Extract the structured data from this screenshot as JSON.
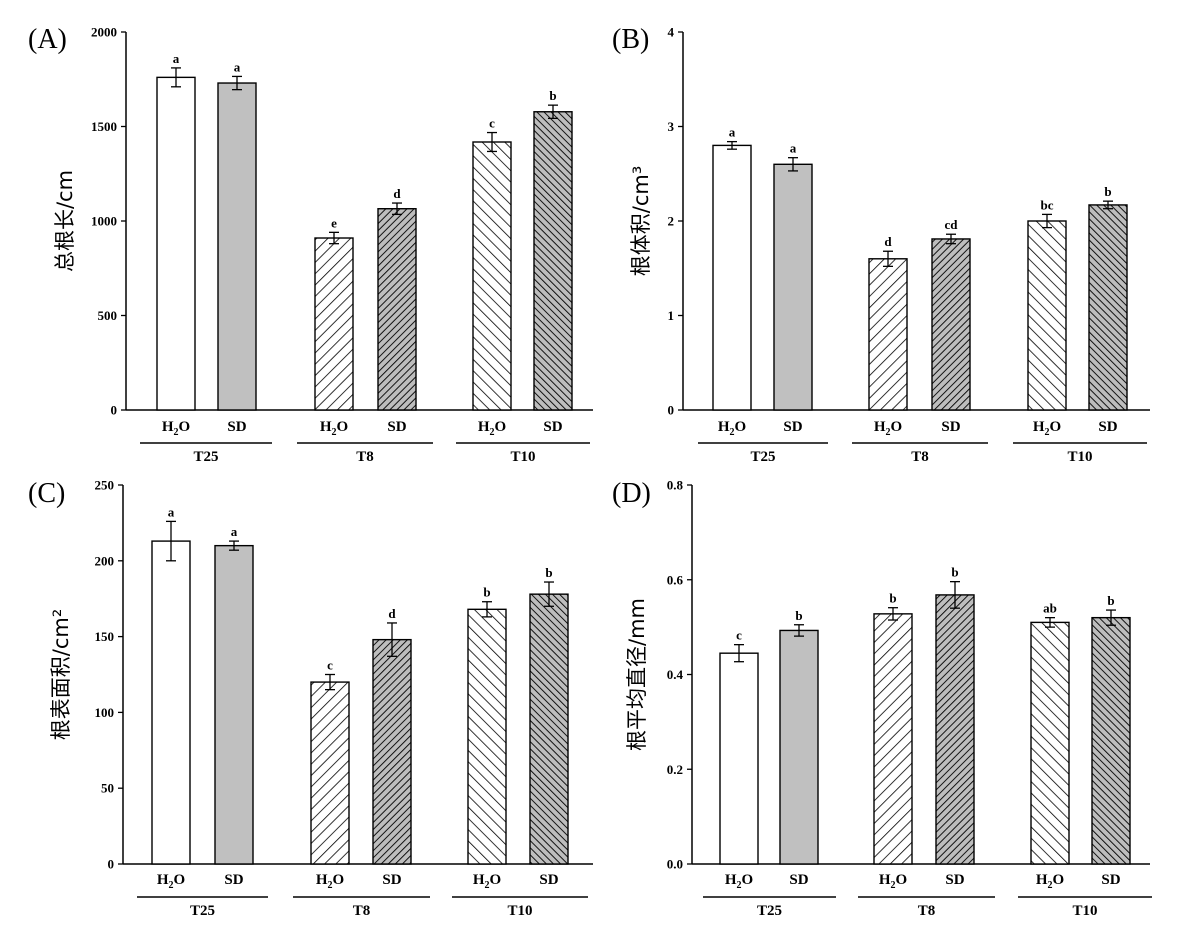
{
  "colors": {
    "ink": "#000000",
    "white_fill": "#ffffff",
    "gray_fill": "#c0c0c0"
  },
  "chart_data": [
    {
      "type": "bar",
      "panel": "(A)",
      "ylabel": "总根长/cm",
      "ylim": [
        0,
        2000
      ],
      "yticks": [
        0,
        500,
        1000,
        1500,
        2000
      ],
      "ytick_labels": [
        "0",
        "500",
        "1000",
        "1500",
        "2000"
      ],
      "groups": [
        "T25",
        "T8",
        "T10"
      ],
      "bars": [
        {
          "group": "T25",
          "treatment": "H2O",
          "value": 1760,
          "error": 50,
          "sig": "a",
          "fill": "white"
        },
        {
          "group": "T25",
          "treatment": "SD",
          "value": 1730,
          "error": 35,
          "sig": "a",
          "fill": "gray"
        },
        {
          "group": "T8",
          "treatment": "H2O",
          "value": 910,
          "error": 30,
          "sig": "e",
          "fill": "hatch-light"
        },
        {
          "group": "T8",
          "treatment": "SD",
          "value": 1065,
          "error": 30,
          "sig": "d",
          "fill": "hatch-dense"
        },
        {
          "group": "T10",
          "treatment": "H2O",
          "value": 1418,
          "error": 50,
          "sig": "c",
          "fill": "hatch-back-light"
        },
        {
          "group": "T10",
          "treatment": "SD",
          "value": 1578,
          "error": 35,
          "sig": "b",
          "fill": "hatch-back-dense"
        }
      ]
    },
    {
      "type": "bar",
      "panel": "(B)",
      "ylabel": "根体积/cm³",
      "ylim": [
        0,
        4
      ],
      "yticks": [
        0,
        1,
        2,
        3,
        4
      ],
      "ytick_labels": [
        "0",
        "1",
        "2",
        "3",
        "4"
      ],
      "groups": [
        "T25",
        "T8",
        "T10"
      ],
      "bars": [
        {
          "group": "T25",
          "treatment": "H2O",
          "value": 2.8,
          "error": 0.04,
          "sig": "a",
          "fill": "white"
        },
        {
          "group": "T25",
          "treatment": "SD",
          "value": 2.6,
          "error": 0.07,
          "sig": "a",
          "fill": "gray"
        },
        {
          "group": "T8",
          "treatment": "H2O",
          "value": 1.6,
          "error": 0.08,
          "sig": "d",
          "fill": "hatch-light"
        },
        {
          "group": "T8",
          "treatment": "SD",
          "value": 1.81,
          "error": 0.05,
          "sig": "cd",
          "fill": "hatch-dense"
        },
        {
          "group": "T10",
          "treatment": "H2O",
          "value": 2.0,
          "error": 0.07,
          "sig": "bc",
          "fill": "hatch-back-light"
        },
        {
          "group": "T10",
          "treatment": "SD",
          "value": 2.17,
          "error": 0.04,
          "sig": "b",
          "fill": "hatch-back-dense"
        }
      ]
    },
    {
      "type": "bar",
      "panel": "(C)",
      "ylabel": "根表面积/cm²",
      "ylim": [
        0,
        250
      ],
      "yticks": [
        0,
        50,
        100,
        150,
        200,
        250
      ],
      "ytick_labels": [
        "0",
        "50",
        "100",
        "150",
        "200",
        "250"
      ],
      "groups": [
        "T25",
        "T8",
        "T10"
      ],
      "bars": [
        {
          "group": "T25",
          "treatment": "H2O",
          "value": 213,
          "error": 13,
          "sig": "a",
          "fill": "white"
        },
        {
          "group": "T25",
          "treatment": "SD",
          "value": 210,
          "error": 3,
          "sig": "a",
          "fill": "gray"
        },
        {
          "group": "T8",
          "treatment": "H2O",
          "value": 120,
          "error": 5,
          "sig": "c",
          "fill": "hatch-light"
        },
        {
          "group": "T8",
          "treatment": "SD",
          "value": 148,
          "error": 11,
          "sig": "d",
          "fill": "hatch-dense"
        },
        {
          "group": "T10",
          "treatment": "H2O",
          "value": 168,
          "error": 5,
          "sig": "b",
          "fill": "hatch-back-light"
        },
        {
          "group": "T10",
          "treatment": "SD",
          "value": 178,
          "error": 8,
          "sig": "b",
          "fill": "hatch-back-dense"
        }
      ]
    },
    {
      "type": "bar",
      "panel": "(D)",
      "ylabel": "根平均直径/mm",
      "ylim": [
        0,
        0.8
      ],
      "yticks": [
        0,
        0.2,
        0.4,
        0.6,
        0.8
      ],
      "ytick_labels": [
        "0.0",
        "0.2",
        "0.4",
        "0.6",
        "0.8"
      ],
      "groups": [
        "T25",
        "T8",
        "T10"
      ],
      "bars": [
        {
          "group": "T25",
          "treatment": "H2O",
          "value": 0.445,
          "error": 0.018,
          "sig": "c",
          "fill": "white"
        },
        {
          "group": "T25",
          "treatment": "SD",
          "value": 0.493,
          "error": 0.012,
          "sig": "b",
          "fill": "gray"
        },
        {
          "group": "T8",
          "treatment": "H2O",
          "value": 0.528,
          "error": 0.013,
          "sig": "b",
          "fill": "hatch-light"
        },
        {
          "group": "T8",
          "treatment": "SD",
          "value": 0.568,
          "error": 0.028,
          "sig": "b",
          "fill": "hatch-dense"
        },
        {
          "group": "T10",
          "treatment": "H2O",
          "value": 0.51,
          "error": 0.01,
          "sig": "ab",
          "fill": "hatch-back-light"
        },
        {
          "group": "T10",
          "treatment": "SD",
          "value": 0.52,
          "error": 0.016,
          "sig": "b",
          "fill": "hatch-back-dense"
        }
      ]
    }
  ]
}
